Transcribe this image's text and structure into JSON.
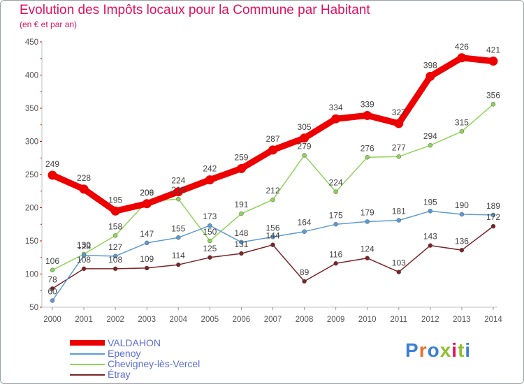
{
  "title": "Evolution des Impôts locaux pour la Commune par Habitant",
  "subtitle": "(en € et par an)",
  "brand": "Proxiti",
  "colors": {
    "title": "#e0115f",
    "legend_text": "#5b6ed6",
    "axis": "#c0c0c0"
  },
  "chart_data": {
    "type": "line",
    "x": [
      "2000",
      "2001",
      "2002",
      "2003",
      "2004",
      "2005",
      "2006",
      "2007",
      "2008",
      "2009",
      "2010",
      "2011",
      "2012",
      "2013",
      "2014"
    ],
    "ylim": [
      50,
      450
    ],
    "yticks": [
      50,
      100,
      150,
      200,
      250,
      300,
      350,
      400,
      450
    ],
    "grid": false,
    "legend_position": "bottom-left",
    "series": [
      {
        "name": "VALDAHON",
        "color": "#ee0000",
        "width": 9,
        "marker_radius": 6.5,
        "values": [
          249,
          228,
          195,
          206,
          224,
          242,
          259,
          287,
          305,
          334,
          339,
          327,
          398,
          426,
          421
        ]
      },
      {
        "name": "Epenoy",
        "color": "#5b9bd5",
        "width": 1.5,
        "marker_radius": 3,
        "values": [
          60,
          128,
          127,
          147,
          155,
          173,
          148,
          156,
          164,
          175,
          179,
          181,
          195,
          190,
          189
        ]
      },
      {
        "name": "Chevigney-lès-Vercel",
        "color": "#8fd45a",
        "width": 1.5,
        "marker_radius": 3,
        "values": [
          106,
          130,
          158,
          209,
          213,
          150,
          191,
          212,
          279,
          224,
          276,
          277,
          294,
          315,
          356
        ]
      },
      {
        "name": "Étray",
        "color": "#7b2326",
        "width": 1.5,
        "marker_radius": 3,
        "values": [
          78,
          108,
          108,
          109,
          114,
          125,
          131,
          144,
          89,
          116,
          124,
          103,
          143,
          136,
          172
        ]
      }
    ]
  }
}
